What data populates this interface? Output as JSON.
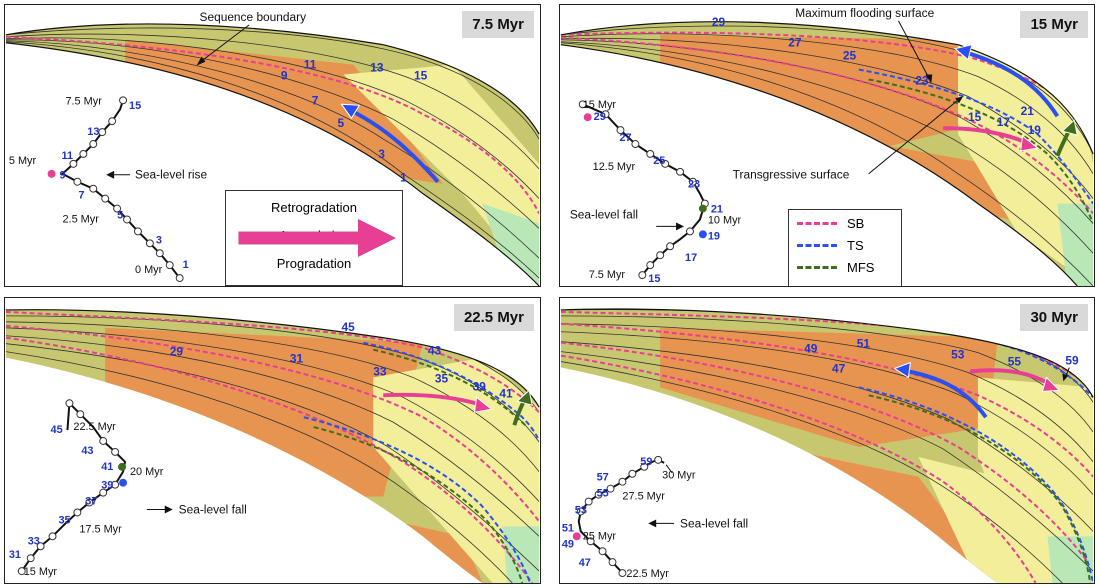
{
  "panels": [
    {
      "time": "7.5 Myr",
      "numbers": [
        "1",
        "3",
        "5",
        "7",
        "9",
        "11",
        "13",
        "15"
      ],
      "curve_labels": [
        "7.5 Myr",
        "5 Myr",
        "2.5 Myr",
        "0 Myr"
      ],
      "curve_numbers": [
        "15",
        "13",
        "11",
        "9",
        "7",
        "5",
        "3",
        "1"
      ],
      "annotation": "Sea-level rise",
      "callout": "Sequence boundary"
    },
    {
      "time": "15 Myr",
      "numbers": [
        "29",
        "27",
        "25",
        "23",
        "21",
        "15",
        "17",
        "19"
      ],
      "curve_labels": [
        "15 Myr",
        "12.5 Myr",
        "10 Myr",
        "7.5 Myr"
      ],
      "curve_numbers": [
        "29",
        "27",
        "25",
        "23",
        "21",
        "19",
        "17",
        "15"
      ],
      "annotation": "Sea-level fall",
      "callout_top": "Maximum flooding surface",
      "callout_bottom": "Transgressive surface"
    },
    {
      "time": "22.5 Myr",
      "numbers": [
        "45",
        "29",
        "31",
        "43",
        "33",
        "35",
        "39",
        "41"
      ],
      "curve_labels": [
        "22.5 Myr",
        "20 Myr",
        "17.5 Myr",
        "15 Myr"
      ],
      "curve_numbers": [
        "45",
        "43",
        "41",
        "39",
        "37",
        "35",
        "33",
        "31"
      ],
      "annotation": "Sea-level fall"
    },
    {
      "time": "30 Myr",
      "numbers": [
        "49",
        "51",
        "47",
        "53",
        "55",
        "59"
      ],
      "curve_labels": [
        "30 Myr",
        "27.5 Myr",
        "25 Myr",
        "22.5 Myr"
      ],
      "curve_numbers": [
        "59",
        "57",
        "55",
        "53",
        "51",
        "49",
        "47"
      ],
      "annotation": "Sea-level fall"
    }
  ],
  "legend_arrows": [
    {
      "label": "Retrogradation",
      "color": "#2b50f0"
    },
    {
      "label": "Aggradation",
      "color": "#3f6e1e"
    },
    {
      "label": "Progradation",
      "color": "#e83e94"
    }
  ],
  "legend_surfaces": [
    {
      "label": "SB",
      "color": "#e83e94"
    },
    {
      "label": "TS",
      "color": "#2b50f0"
    },
    {
      "label": "MFS",
      "color": "#3f6e1e"
    }
  ],
  "colors": {
    "sand": "#f2ee9a",
    "shelf": "#c7c770",
    "orange": "#e69450",
    "green": "#b9e8b6"
  }
}
